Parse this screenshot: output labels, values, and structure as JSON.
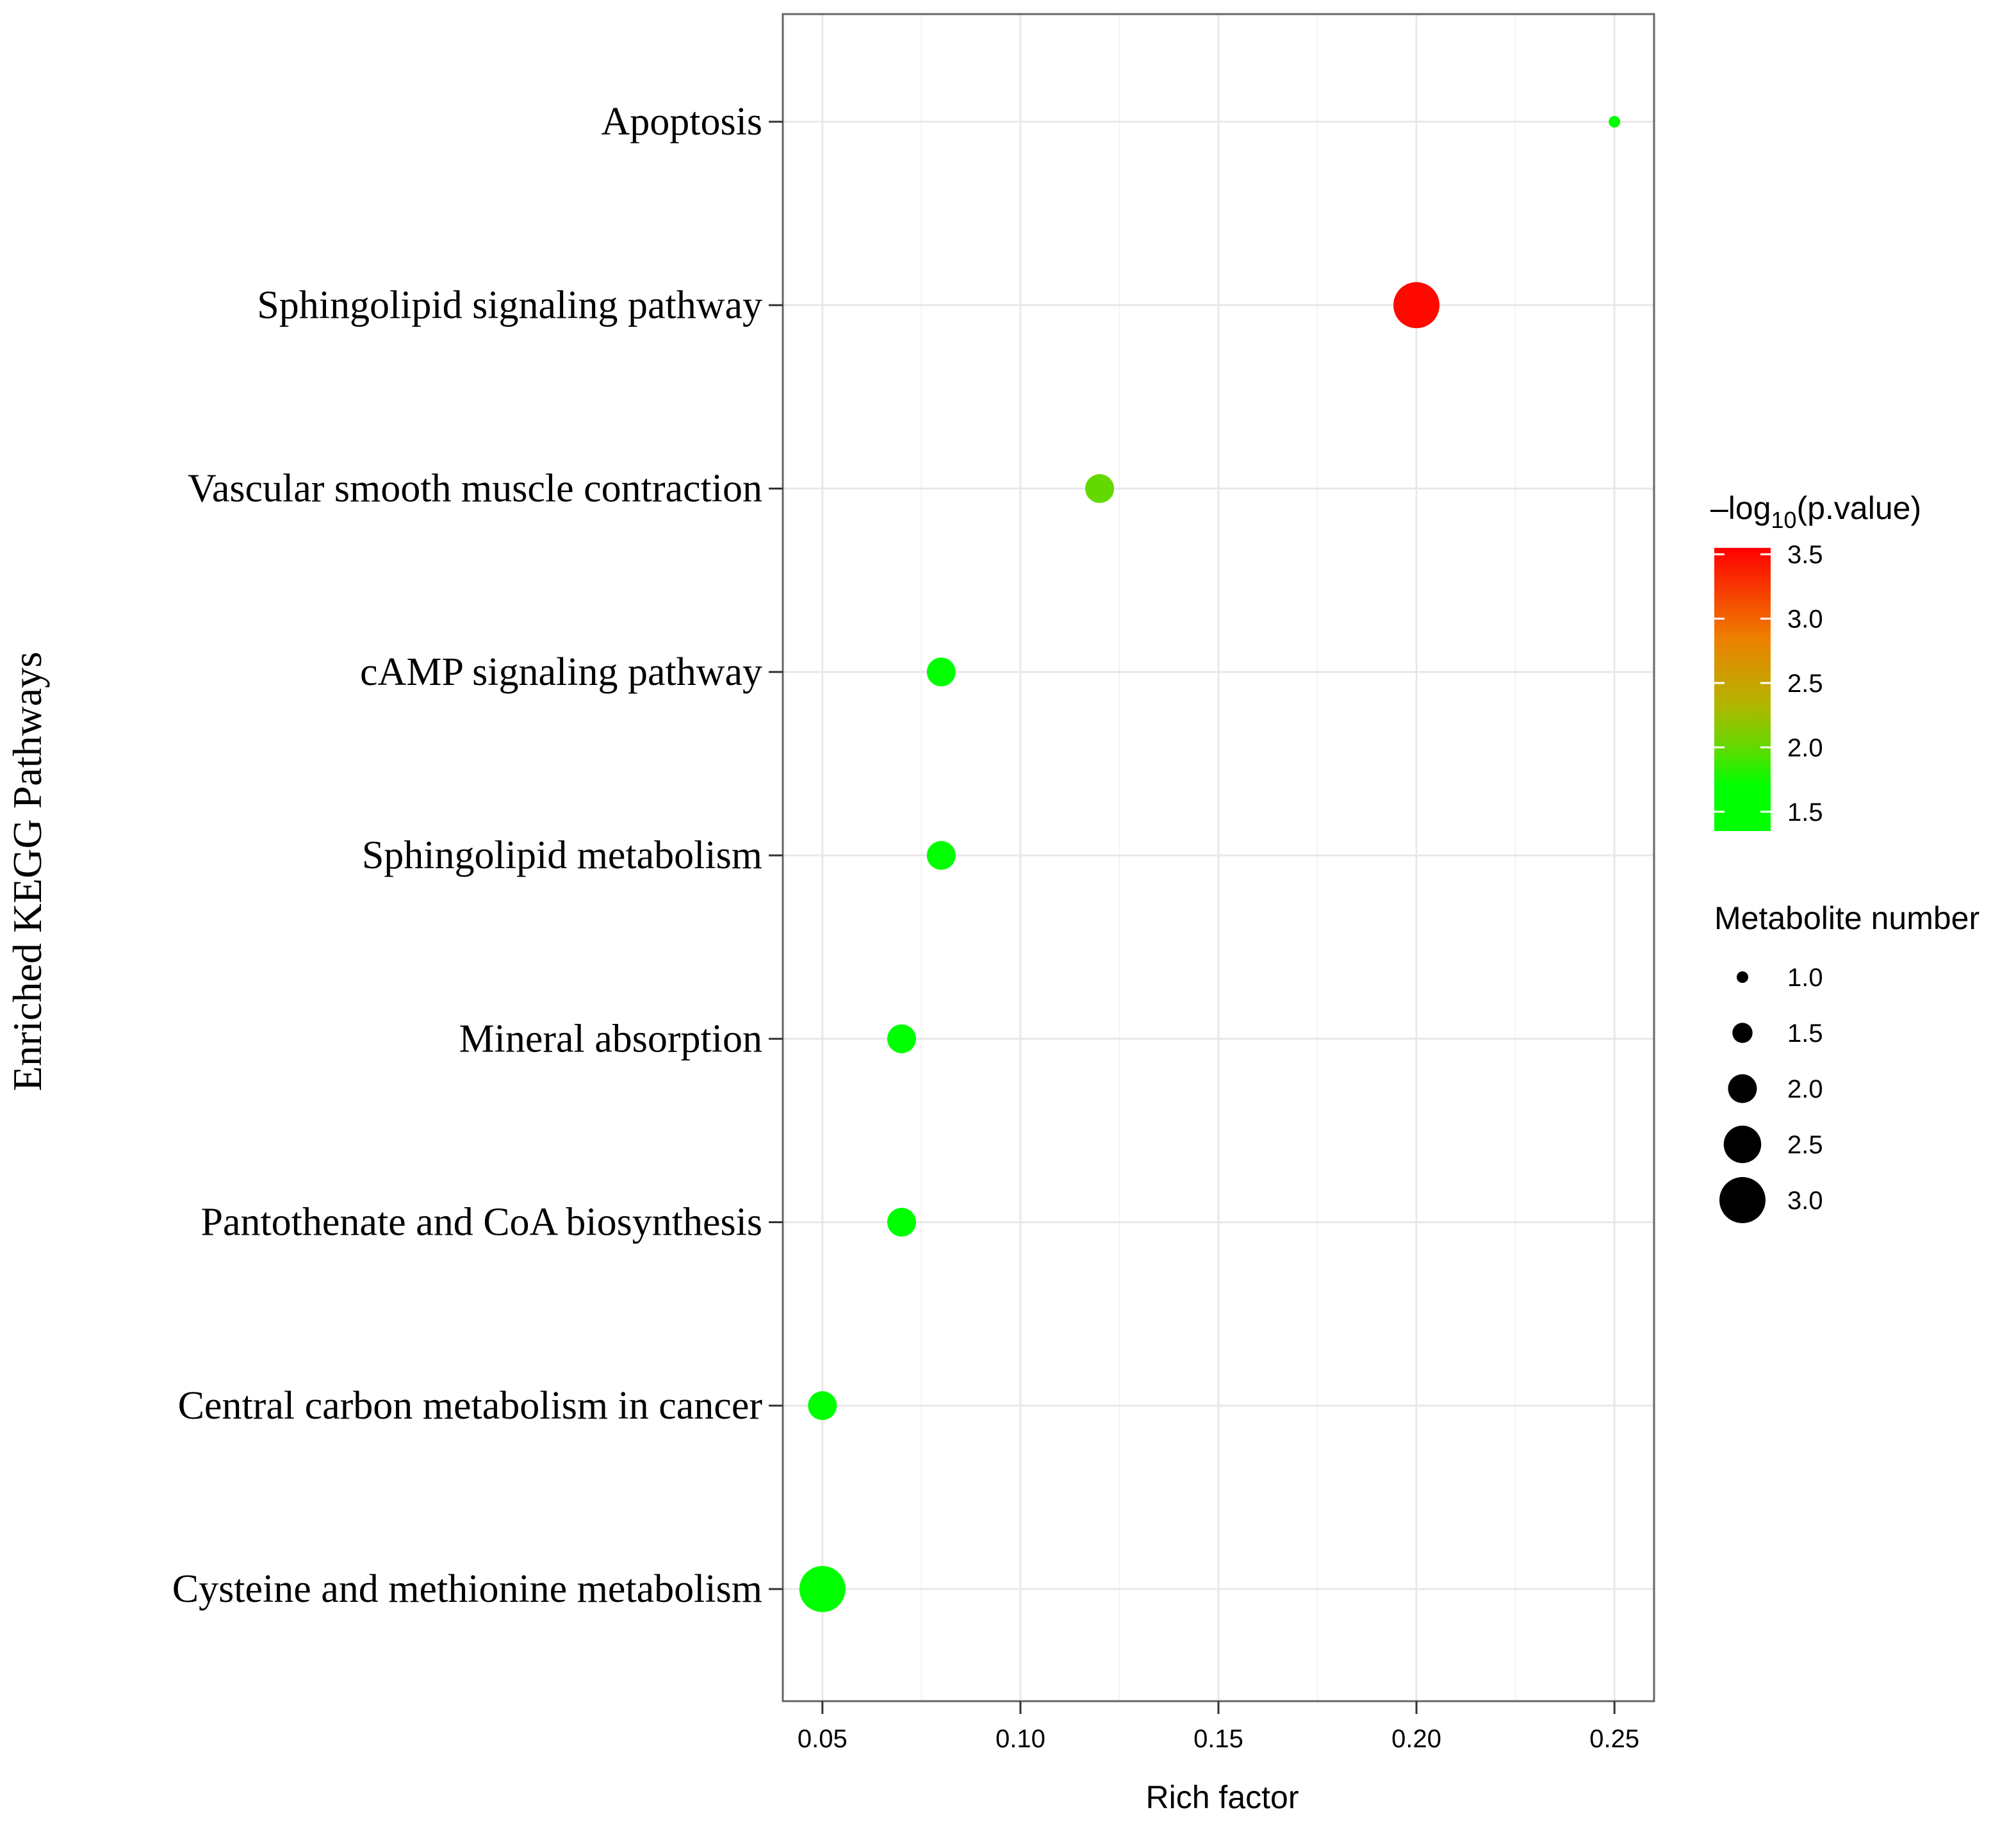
{
  "chart_data": {
    "type": "scatter",
    "xlabel": "Rich factor",
    "ylabel": "Enriched KEGG Pathways",
    "xlim": [
      0.04,
      0.26
    ],
    "x_ticks": [
      "0.05",
      "0.10",
      "0.15",
      "0.20",
      "0.25"
    ],
    "x_tick_values": [
      0.05,
      0.1,
      0.15,
      0.2,
      0.25
    ],
    "categories": [
      "Apoptosis",
      "Sphingolipid signaling pathway",
      "Vascular smooth muscle contraction",
      "cAMP signaling pathway",
      "Sphingolipid metabolism",
      "Mineral absorption",
      "Pantothenate and CoA biosynthesis",
      "Central carbon metabolism in cancer",
      "Cysteine and methionine metabolism"
    ],
    "points": [
      {
        "pathway": "Apoptosis",
        "rich_factor": 0.25,
        "neg_log10_p": 1.4,
        "metabolite_number": 1
      },
      {
        "pathway": "Sphingolipid signaling pathway",
        "rich_factor": 0.2,
        "neg_log10_p": 3.5,
        "metabolite_number": 3
      },
      {
        "pathway": "Vascular smooth muscle contraction",
        "rich_factor": 0.12,
        "neg_log10_p": 2.0,
        "metabolite_number": 2
      },
      {
        "pathway": "cAMP signaling pathway",
        "rich_factor": 0.08,
        "neg_log10_p": 1.5,
        "metabolite_number": 2
      },
      {
        "pathway": "Sphingolipid metabolism",
        "rich_factor": 0.08,
        "neg_log10_p": 1.5,
        "metabolite_number": 2
      },
      {
        "pathway": "Mineral absorption",
        "rich_factor": 0.07,
        "neg_log10_p": 1.5,
        "metabolite_number": 2
      },
      {
        "pathway": "Pantothenate and CoA biosynthesis",
        "rich_factor": 0.07,
        "neg_log10_p": 1.5,
        "metabolite_number": 2
      },
      {
        "pathway": "Central carbon metabolism in cancer",
        "rich_factor": 0.05,
        "neg_log10_p": 1.4,
        "metabolite_number": 2
      },
      {
        "pathway": "Cysteine and methionine metabolism",
        "rich_factor": 0.05,
        "neg_log10_p": 1.5,
        "metabolite_number": 3
      }
    ],
    "color_legend": {
      "title_prefix": "–log",
      "title_sub": "10",
      "title_suffix": "(p.value)",
      "ticks": [
        "3.5",
        "3.0",
        "2.5",
        "2.0",
        "1.5"
      ],
      "tick_values": [
        3.5,
        3.0,
        2.5,
        2.0,
        1.5
      ],
      "range": [
        1.35,
        3.55
      ],
      "colors": {
        "low": "#00ff00",
        "mid": "#b4b400",
        "high": "#ff0000"
      }
    },
    "size_legend": {
      "title": "Metabolite number",
      "labels": [
        "1.0",
        "1.5",
        "2.0",
        "2.5",
        "3.0"
      ],
      "values": [
        1.0,
        1.5,
        2.0,
        2.5,
        3.0
      ]
    },
    "grid": true,
    "legend_position": "right"
  }
}
